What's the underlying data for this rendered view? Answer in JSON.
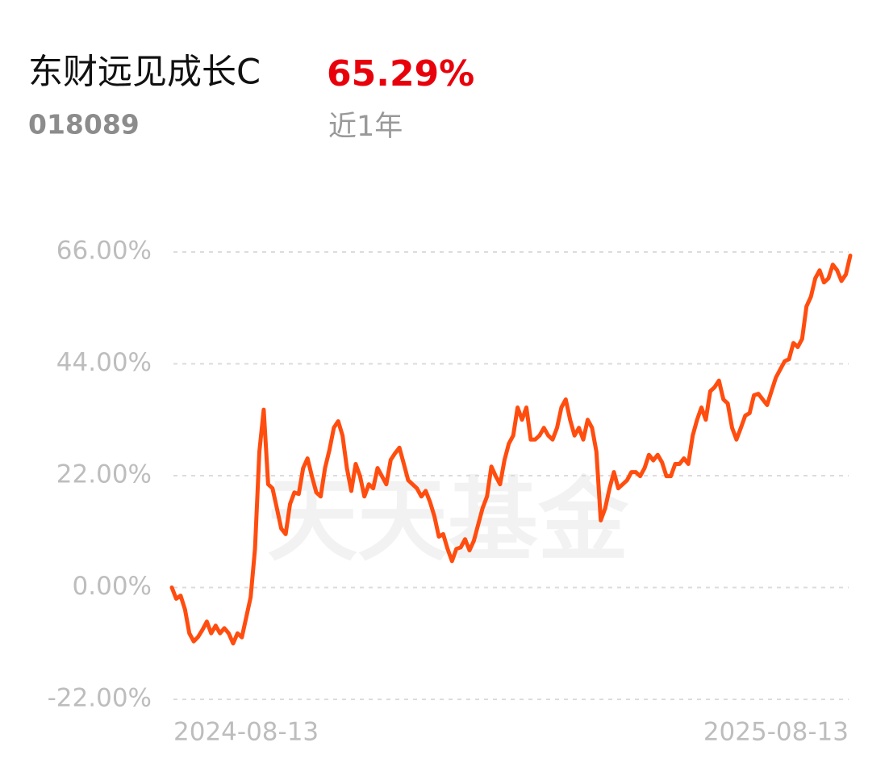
{
  "header": {
    "fund_name": "东财远见成长C",
    "return": "65.29%",
    "code": "018089",
    "period": "近1年"
  },
  "watermark": "天天基金",
  "chart_data": {
    "type": "line",
    "categories": [
      "2024-08-13",
      null,
      null,
      null,
      null,
      null,
      null,
      null,
      null,
      null,
      null,
      null,
      null,
      null,
      null,
      null,
      null,
      null,
      null,
      null,
      null,
      null,
      null,
      null,
      null,
      null,
      null,
      null,
      null,
      null,
      null,
      null,
      null,
      null,
      null,
      null,
      null,
      null,
      null,
      null,
      null,
      null,
      null,
      null,
      null,
      null,
      null,
      null,
      null,
      null,
      null,
      null,
      null,
      null,
      null,
      null,
      null,
      null,
      null,
      null,
      null,
      null,
      null,
      null,
      null,
      null,
      null,
      null,
      null,
      null,
      null,
      null,
      null,
      null,
      null,
      null,
      null,
      null,
      null,
      null,
      null,
      null,
      null,
      null,
      null,
      null,
      null,
      null,
      null,
      null,
      null,
      null,
      null,
      null,
      null,
      null,
      null,
      null,
      null,
      null,
      null,
      null,
      null,
      null,
      null,
      null,
      null,
      null,
      null,
      null,
      null,
      null,
      null,
      null,
      null,
      null,
      null,
      null,
      null,
      null,
      null,
      null,
      null,
      null,
      null,
      null,
      null,
      null,
      null,
      null,
      null,
      null,
      null,
      null,
      null,
      null,
      null,
      null,
      null,
      null,
      null,
      null,
      null,
      null,
      null,
      null,
      null,
      null,
      null,
      null,
      null,
      null,
      null,
      null,
      null,
      "2025-08-13"
    ],
    "series": [
      {
        "color": "#ff4d0f",
        "values": [
          0,
          -2.2,
          -1.6,
          -4.3,
          -9,
          -10.6,
          -9.7,
          -8.3,
          -6.7,
          -9,
          -7.5,
          -9,
          -8,
          -9,
          -11,
          -9,
          -9.8,
          -5.9,
          -1.9,
          7.6,
          26.7,
          35,
          20.3,
          19.5,
          15.6,
          11.6,
          10.5,
          16.4,
          18.7,
          18.4,
          23.5,
          25.4,
          21.9,
          18.7,
          17.9,
          23.5,
          27,
          31.4,
          32.7,
          29.9,
          23.5,
          19,
          24.3,
          21.9,
          17.9,
          20.3,
          19.5,
          23.5,
          21.9,
          20.3,
          25.1,
          26.4,
          27.5,
          24.3,
          21.1,
          20.3,
          19.5,
          17.9,
          19,
          16.8,
          14,
          10,
          10.5,
          7.6,
          5.2,
          7.6,
          7.9,
          9.5,
          7.3,
          9.2,
          12.4,
          15.6,
          17.9,
          23.8,
          21.9,
          20.3,
          25.1,
          28.3,
          29.9,
          35.4,
          33,
          35.4,
          29.1,
          29.1,
          29.9,
          31.4,
          29.9,
          29.1,
          31.4,
          35.4,
          37,
          33,
          29.9,
          31.4,
          29.1,
          33,
          31.4,
          26.7,
          13.2,
          15.6,
          19.5,
          22.7,
          19.5,
          20.3,
          21.1,
          22.7,
          22.7,
          21.9,
          23.5,
          26.1,
          25,
          26.1,
          24.6,
          21.9,
          21.9,
          24.3,
          24.3,
          25.4,
          24.3,
          29.9,
          33,
          35.4,
          33,
          38.6,
          39.4,
          40.7,
          37,
          36.2,
          31.4,
          29.1,
          31.4,
          33.8,
          34.3,
          37.8,
          38.1,
          37,
          35.9,
          38.6,
          41.3,
          42.9,
          44.5,
          44.9,
          48.1,
          47.3,
          48.9,
          55.3,
          57.2,
          60.8,
          62.4,
          60,
          60.8,
          63.5,
          62.4,
          60.3,
          61.6,
          65.29
        ]
      }
    ],
    "ylim": [
      -22,
      66
    ],
    "yticks": [
      {
        "value": 66,
        "label": "66.00%"
      },
      {
        "value": 44,
        "label": "44.00%"
      },
      {
        "value": 22,
        "label": "22.00%"
      },
      {
        "value": 0,
        "label": "0.00%"
      },
      {
        "value": -22,
        "label": "-22.00%"
      }
    ],
    "grid": true
  }
}
